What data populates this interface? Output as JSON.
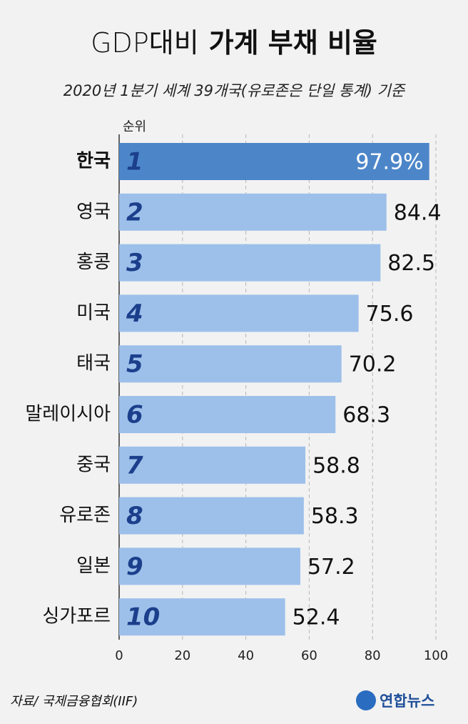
{
  "chart_data": {
    "type": "hbar",
    "title": [
      "GDP대비",
      "가계 부채 비율"
    ],
    "subtitle": "2020년 1분기 세계 39개국(유로존은 단일 통계) 기준",
    "rank_label": "순위",
    "categories": [
      "한국",
      "영국",
      "홍콩",
      "미국",
      "태국",
      "말레이시아",
      "중국",
      "유로존",
      "일본",
      "싱가포르"
    ],
    "ranks": [
      1,
      2,
      3,
      4,
      5,
      6,
      7,
      8,
      9,
      10
    ],
    "values": [
      97.9,
      84.4,
      82.5,
      75.6,
      70.2,
      68.3,
      58.8,
      58.3,
      57.2,
      52.4
    ],
    "value_labels": [
      "97.9%",
      "84.4",
      "82.5",
      "75.6",
      "70.2",
      "68.3",
      "58.8",
      "58.3",
      "57.2",
      "52.4"
    ],
    "colors": [
      "#4c86c9",
      "#9dc0ea",
      "#9dc0ea",
      "#9dc0ea",
      "#9dc0ea",
      "#9dc0ea",
      "#9dc0ea",
      "#9dc0ea",
      "#9dc0ea",
      "#9dc0ea"
    ],
    "xlim": [
      0,
      100
    ],
    "xticks": [
      0,
      20,
      40,
      60,
      80,
      100
    ],
    "grid": true,
    "source": "자료/ 국제금융협회(IIF)",
    "logo": "연합뉴스"
  }
}
